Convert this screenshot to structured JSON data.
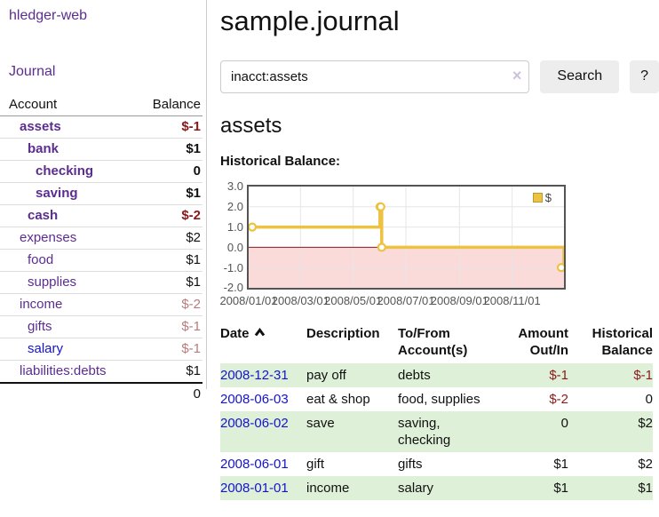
{
  "colors": {
    "link_purple": "#5b2d90",
    "link_blue": "#1414cc",
    "negative_dark": "#8b1717",
    "negative_light": "#b97b7b",
    "row_green": "#dff0d8",
    "chart_gold": "#EDC240",
    "chart_negative_region": "#fbdada",
    "chart_zero_line": "#8b1a1a",
    "chart_border": "#545454"
  },
  "sidebar": {
    "title": "hledger-web",
    "nav": {
      "journal": "Journal"
    },
    "table": {
      "headers": {
        "account": "Account",
        "balance": "Balance"
      },
      "rows": [
        {
          "name": "assets",
          "balance": "$-1",
          "depth": 1,
          "bold": true,
          "neg": "dark"
        },
        {
          "name": "bank",
          "balance": "$1",
          "depth": 2,
          "bold": true
        },
        {
          "name": "checking",
          "balance": "0",
          "depth": 3,
          "bold": true
        },
        {
          "name": "saving",
          "balance": "$1",
          "depth": 3,
          "bold": true
        },
        {
          "name": "cash",
          "balance": "$-2",
          "depth": 2,
          "bold": true,
          "neg": "dark"
        },
        {
          "name": "expenses",
          "balance": "$2",
          "depth": 1
        },
        {
          "name": "food",
          "balance": "$1",
          "depth": 2
        },
        {
          "name": "supplies",
          "balance": "$1",
          "depth": 2
        },
        {
          "name": "income",
          "balance": "$-2",
          "depth": 1,
          "neg": "light"
        },
        {
          "name": "gifts",
          "balance": "$-1",
          "depth": 2,
          "neg": "light"
        },
        {
          "name": "salary",
          "balance": "$-1",
          "depth": 2,
          "neg": "light",
          "link": "blue"
        },
        {
          "name": "liabilities:debts",
          "balance": "$1",
          "depth": 1
        }
      ],
      "total": "0"
    }
  },
  "header": {
    "title": "sample.journal"
  },
  "search": {
    "value": "inacct:assets",
    "clear_icon": "×",
    "button": "Search",
    "help_button": "?"
  },
  "account_page": {
    "title": "assets",
    "chart_label": "Historical Balance:"
  },
  "chart_data": {
    "type": "line",
    "step": true,
    "title": "Historical Balance",
    "xlim": [
      "2008-01-01",
      "2008-12-31"
    ],
    "ylim": [
      -2,
      3
    ],
    "y_ticks": [
      3,
      2,
      1,
      0,
      -1,
      -2
    ],
    "y_tick_labels": [
      "3.0",
      "2.0",
      "1.0",
      "0.0",
      "-1.0",
      "-2.0"
    ],
    "x_ticks": [
      {
        "pos": "2008-01-01",
        "label": "2008/01/01"
      },
      {
        "pos": "2008-03-01",
        "label": "2008/03/01"
      },
      {
        "pos": "2008-05-01",
        "label": "2008/05/01"
      },
      {
        "pos": "2008-07-01",
        "label": "2008/07/01"
      },
      {
        "pos": "2008-09-01",
        "label": "2008/09/01"
      },
      {
        "pos": "2008-11-01",
        "label": "2008/11/01"
      }
    ],
    "series": [
      {
        "name": "$",
        "color": "#EDC240",
        "points": [
          [
            "2008-01-01",
            1
          ],
          [
            "2008-06-01",
            2
          ],
          [
            "2008-06-02",
            2
          ],
          [
            "2008-06-03",
            0
          ],
          [
            "2008-12-31",
            -1
          ]
        ]
      }
    ],
    "negative_region_color": "#fbdada",
    "zero_line_color": "#8b1a1a",
    "grid": true,
    "legend": {
      "position": "top-right",
      "label": "$"
    }
  },
  "register": {
    "headers": {
      "date": "Date",
      "description": "Description",
      "accounts": "To/From Account(s)",
      "amount": "Amount Out/In",
      "balance": "Historical Balance"
    },
    "sort_icon": "chevron-up",
    "rows": [
      {
        "date": "2008-12-31",
        "description": "pay off",
        "accounts": "debts",
        "amount": "$-1",
        "balance": "$-1"
      },
      {
        "date": "2008-06-03",
        "description": "eat & shop",
        "accounts": "food, supplies",
        "amount": "$-2",
        "balance": "0"
      },
      {
        "date": "2008-06-02",
        "description": "save",
        "accounts": "saving, checking",
        "amount": "0",
        "balance": "$2"
      },
      {
        "date": "2008-06-01",
        "description": "gift",
        "accounts": "gifts",
        "amount": "$1",
        "balance": "$2"
      },
      {
        "date": "2008-01-01",
        "description": "income",
        "accounts": "salary",
        "amount": "$1",
        "balance": "$1"
      }
    ]
  }
}
